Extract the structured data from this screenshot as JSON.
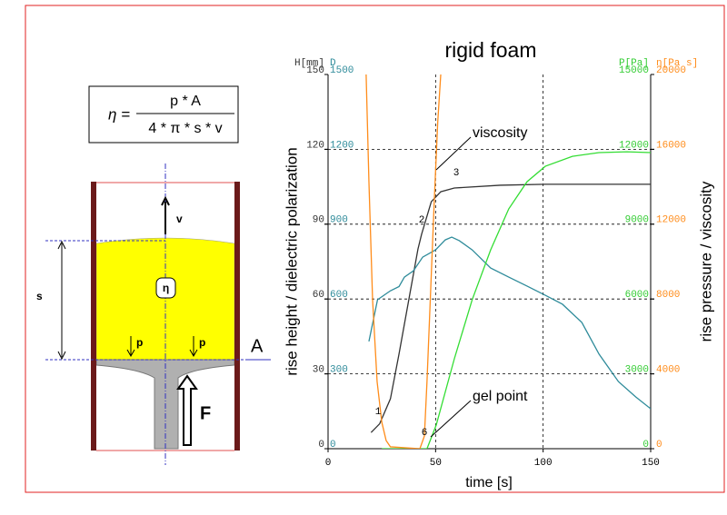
{
  "diagram": {
    "formula": {
      "lhs": "η =",
      "numerator": "p * A",
      "denominator": "4 * π * s * v"
    },
    "labels": {
      "velocity": "v",
      "viscosity": "η",
      "height": "s",
      "pressure_left": "p",
      "pressure_right": "p",
      "area": "A",
      "force": "F"
    }
  },
  "chart_data": {
    "type": "line",
    "title": "rigid foam",
    "x_label": "time [s]",
    "y_label": "rise height / dielectric polarization",
    "y2_label": "rise pressure / viscosity",
    "xlim": [
      0,
      150
    ],
    "xticks": [
      0,
      50,
      100,
      150
    ],
    "grid": true,
    "y_axes": [
      {
        "label": "H[mm]",
        "ylim": [
          0,
          150
        ],
        "yticks": [
          0,
          30,
          60,
          90,
          120,
          150
        ],
        "color": "#333333"
      },
      {
        "label": "D",
        "ylim": [
          0,
          1500
        ],
        "yticks": [
          0,
          300,
          600,
          900,
          1200,
          1500
        ],
        "color": "#2e8b9a"
      },
      {
        "label": "P[Pa]",
        "ylim": [
          0,
          15000
        ],
        "yticks": [
          0,
          3000,
          6000,
          9000,
          12000,
          15000
        ],
        "color": "#33cc33"
      },
      {
        "label": "η[Pa s]",
        "ylim": [
          0,
          20000
        ],
        "yticks": [
          0,
          4000,
          8000,
          12000,
          16000,
          20000
        ],
        "color": "#ff8c1a"
      }
    ],
    "series": [
      {
        "axis": 0,
        "color": "#333333",
        "x": [
          20,
          24,
          29,
          33,
          37.6,
          41.8,
          43.5,
          48,
          52.4,
          58.7,
          80,
          101,
          150
        ],
        "values": [
          6.5,
          10,
          20,
          38,
          60,
          80,
          86,
          99,
          103,
          104.5,
          105.6,
          106,
          106
        ]
      },
      {
        "axis": 1,
        "color": "#2e8b9a",
        "x": [
          19,
          23,
          29,
          33,
          35.5,
          39.7,
          44,
          50,
          54.5,
          57.5,
          61,
          67,
          75.6,
          84,
          92.5,
          101,
          109,
          118,
          126,
          135,
          143,
          150
        ],
        "values": [
          430,
          597,
          633,
          650,
          688,
          713,
          768,
          797,
          837,
          848,
          834,
          797,
          724,
          688,
          652,
          615,
          579,
          506,
          379,
          269,
          208,
          160
        ]
      },
      {
        "axis": 2,
        "color": "#33dd33",
        "x": [
          25,
          45,
          46,
          50.3,
          58.7,
          67,
          75.6,
          84,
          92.5,
          101,
          113.6,
          126,
          139,
          150
        ],
        "values": [
          0,
          0,
          0,
          950,
          3600,
          5970,
          7970,
          9610,
          10700,
          11320,
          11720,
          11870,
          11900,
          11870
        ]
      },
      {
        "axis": 3,
        "color": "#ff8c1a",
        "x": [
          17.7,
          19,
          20.7,
          22.8,
          25,
          27,
          29,
          42.7,
          44.8,
          46,
          47.7,
          49.4,
          51,
          52.4
        ],
        "values": [
          20000,
          14270,
          7960,
          3590,
          1410,
          440,
          100,
          0,
          680,
          3590,
          8450,
          13300,
          17470,
          20000
        ]
      }
    ],
    "annotations": [
      "viscosity",
      "gel point"
    ],
    "point_labels": [
      "1",
      "2",
      "3",
      "6"
    ]
  }
}
